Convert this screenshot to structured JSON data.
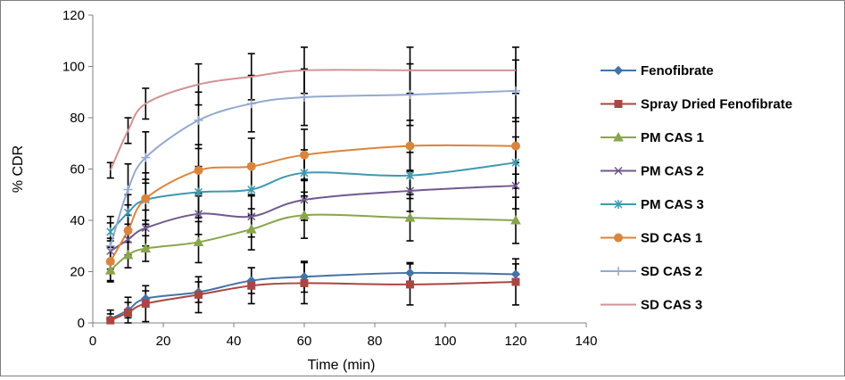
{
  "chart_data": {
    "type": "line",
    "title": "",
    "xlabel": "Time (min)",
    "ylabel": "% CDR",
    "xlim": [
      0,
      140
    ],
    "ylim": [
      0,
      120
    ],
    "xticks": [
      0,
      20,
      40,
      60,
      80,
      100,
      120,
      140
    ],
    "yticks": [
      0,
      20,
      40,
      60,
      80,
      100,
      120
    ],
    "grid": false,
    "legend_position": "right",
    "x": [
      5,
      10,
      15,
      30,
      45,
      60,
      90,
      120
    ],
    "series": [
      {
        "name": "Fenofibrate",
        "color": "#4572A7",
        "marker": "diamond",
        "values": [
          1.5,
          5,
          9.5,
          12,
          16.5,
          18,
          19.5,
          19
        ],
        "error": [
          2,
          3,
          3,
          4,
          5,
          6,
          4,
          4
        ]
      },
      {
        "name": "Spray Dried Fenofibrate",
        "color": "#AA4643",
        "marker": "square",
        "values": [
          1,
          4,
          7.5,
          11,
          14.5,
          15.5,
          15,
          16
        ],
        "error": [
          4,
          6,
          7,
          7,
          7,
          8,
          8,
          9
        ]
      },
      {
        "name": "PM CAS 1",
        "color": "#89A54E",
        "marker": "triangle",
        "values": [
          20.5,
          26.5,
          29,
          31.5,
          36.5,
          42,
          41,
          40
        ],
        "error": [
          4,
          5,
          5,
          8,
          8,
          9,
          9,
          9
        ]
      },
      {
        "name": "PM CAS 2",
        "color": "#71588F",
        "marker": "x",
        "values": [
          28,
          32.5,
          37,
          42.5,
          41.5,
          48,
          51.5,
          53.5
        ],
        "error": [
          5,
          6,
          7,
          8,
          8,
          8,
          8,
          9
        ]
      },
      {
        "name": "PM CAS 3",
        "color": "#4198AF",
        "marker": "asterisk",
        "values": [
          35.5,
          43,
          48,
          51,
          52,
          58.5,
          57.5,
          62.5
        ],
        "error": [
          6,
          7,
          8,
          10,
          10,
          9,
          9,
          10
        ]
      },
      {
        "name": "SD CAS 1",
        "color": "#DB843D",
        "marker": "circle",
        "values": [
          24,
          36,
          48.5,
          59.5,
          61,
          65.5,
          69,
          69
        ],
        "error": [
          8,
          10,
          10,
          10,
          11,
          10,
          10,
          11
        ]
      },
      {
        "name": "SD CAS 2",
        "color": "#93A9CF",
        "marker": "plus",
        "values": [
          30,
          52,
          64.5,
          79,
          85.5,
          88,
          89,
          90.5
        ],
        "error": [
          9,
          10,
          10,
          11,
          11,
          11,
          12,
          12
        ]
      },
      {
        "name": "SD CAS 3",
        "color": "#D19392",
        "marker": "none",
        "values": [
          59.5,
          75,
          85.5,
          93,
          96,
          98.5,
          98.5,
          98.5
        ],
        "error": [
          3,
          5,
          6,
          8,
          9,
          9,
          9,
          9
        ]
      }
    ]
  }
}
